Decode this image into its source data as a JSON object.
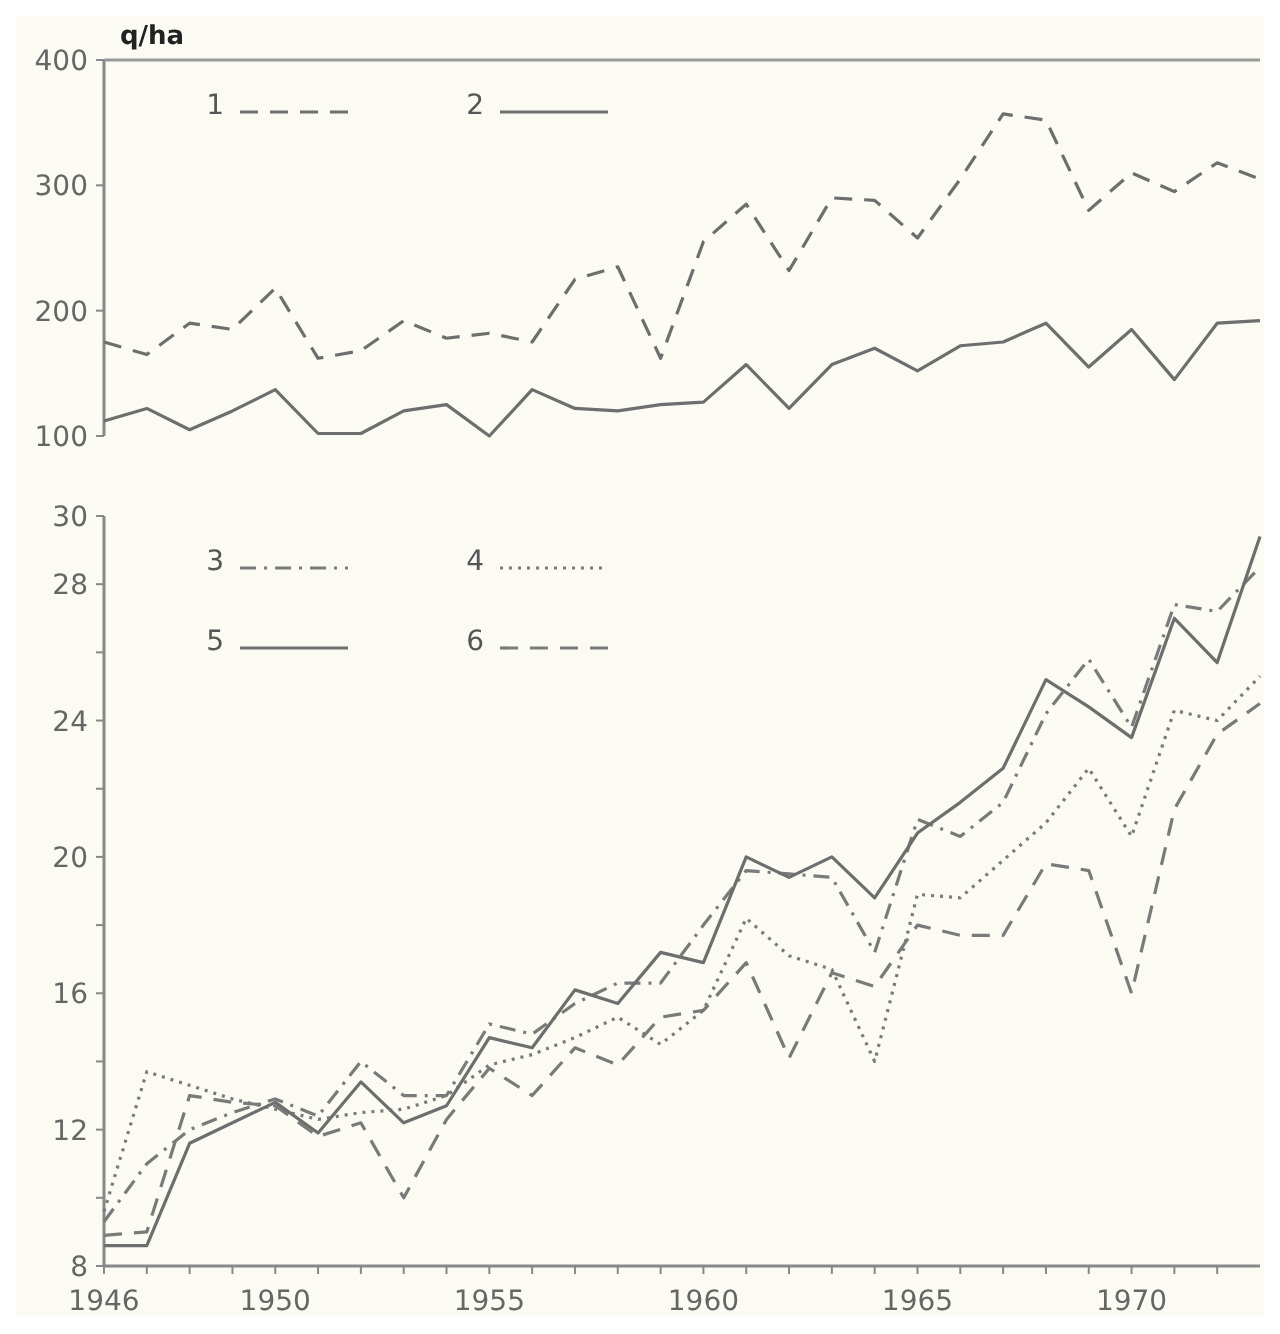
{
  "chart_data": [
    {
      "type": "line",
      "ylabel": "q/ha",
      "x": [
        1946,
        1947,
        1948,
        1949,
        1950,
        1951,
        1952,
        1953,
        1954,
        1955,
        1956,
        1957,
        1958,
        1959,
        1960,
        1961,
        1962,
        1963,
        1964,
        1965,
        1966,
        1967,
        1968,
        1969,
        1970,
        1971,
        1972,
        1973
      ],
      "xlim": [
        1946,
        1973
      ],
      "ylim": [
        100,
        400
      ],
      "yticks": [
        100,
        200,
        300,
        400
      ],
      "tick_labels": "y",
      "legend": "top left",
      "grid": false,
      "series": [
        {
          "name": "1",
          "color": "#6e6e6e",
          "line_style": "dashed",
          "values": [
            175,
            165,
            190,
            185,
            218,
            162,
            168,
            192,
            178,
            182,
            175,
            225,
            235,
            162,
            255,
            285,
            232,
            290,
            288,
            258,
            305,
            357,
            352,
            280,
            310,
            295,
            318,
            305
          ]
        },
        {
          "name": "2",
          "color": "#6e6e6e",
          "line_style": "solid",
          "values": [
            112,
            122,
            105,
            120,
            137,
            102,
            102,
            120,
            125,
            100,
            137,
            122,
            120,
            125,
            127,
            157,
            122,
            157,
            170,
            152,
            172,
            175,
            190,
            155,
            185,
            145,
            190,
            192
          ]
        }
      ]
    },
    {
      "type": "line",
      "x": [
        1946,
        1947,
        1948,
        1949,
        1950,
        1951,
        1952,
        1953,
        1954,
        1955,
        1956,
        1957,
        1958,
        1959,
        1960,
        1961,
        1962,
        1963,
        1964,
        1965,
        1966,
        1967,
        1968,
        1969,
        1970,
        1971,
        1972,
        1973
      ],
      "xlim": [
        1946,
        1973
      ],
      "ylim": [
        8,
        30
      ],
      "xticks": [
        1946,
        {
          "value": 1947,
          "label": null
        },
        {
          "value": 1948,
          "label": null
        },
        {
          "value": 1949,
          "label": null
        },
        1950,
        {
          "value": 1951,
          "label": null
        },
        {
          "value": 1952,
          "label": null
        },
        {
          "value": 1953,
          "label": null
        },
        {
          "value": 1954,
          "label": null
        },
        1955,
        {
          "value": 1956,
          "label": null
        },
        {
          "value": 1957,
          "label": null
        },
        {
          "value": 1958,
          "label": null
        },
        {
          "value": 1959,
          "label": null
        },
        1960,
        {
          "value": 1961,
          "label": null
        },
        {
          "value": 1962,
          "label": null
        },
        {
          "value": 1963,
          "label": null
        },
        {
          "value": 1964,
          "label": null
        },
        1965,
        {
          "value": 1966,
          "label": null
        },
        {
          "value": 1967,
          "label": null
        },
        {
          "value": 1968,
          "label": null
        },
        {
          "value": 1969,
          "label": null
        },
        1970,
        {
          "value": 1971,
          "label": null
        },
        {
          "value": 1972,
          "label": null
        }
      ],
      "yticks": [
        8,
        {
          "value": 10,
          "label": null
        },
        12,
        {
          "value": 14,
          "label": null
        },
        16,
        {
          "value": 18,
          "label": null
        },
        20,
        {
          "value": 22,
          "label": null
        },
        24,
        {
          "value": 26,
          "label": null
        },
        28,
        30
      ],
      "legend": "top left",
      "grid": false,
      "series": [
        {
          "name": "3",
          "color": "#7a7a7a",
          "line_style": "dashdot",
          "values": [
            9.3,
            11.0,
            12.0,
            12.5,
            12.9,
            12.4,
            14.0,
            13.0,
            13.0,
            15.1,
            14.8,
            15.7,
            16.3,
            16.3,
            18.0,
            19.6,
            19.5,
            19.4,
            17.2,
            21.1,
            20.6,
            21.6,
            24.2,
            25.8,
            23.8,
            27.4,
            27.2,
            28.5
          ]
        },
        {
          "name": "4",
          "color": "#7a7a7a",
          "line_style": "dotted",
          "values": [
            9.6,
            13.7,
            13.3,
            12.9,
            12.6,
            12.3,
            12.5,
            12.6,
            13.0,
            13.9,
            14.2,
            14.7,
            15.3,
            14.5,
            15.5,
            18.2,
            17.1,
            16.7,
            14.0,
            18.9,
            18.8,
            19.9,
            21.0,
            22.6,
            20.6,
            24.3,
            24.0,
            25.3
          ]
        },
        {
          "name": "5",
          "color": "#6e6e6e",
          "line_style": "solid",
          "values": [
            8.6,
            8.6,
            11.6,
            12.2,
            12.8,
            11.9,
            13.4,
            12.2,
            12.7,
            14.7,
            14.4,
            16.1,
            15.7,
            17.2,
            16.9,
            20.0,
            19.4,
            20.0,
            18.8,
            20.7,
            21.6,
            22.6,
            25.2,
            24.4,
            23.5,
            27.0,
            25.7,
            29.4
          ]
        },
        {
          "name": "6",
          "color": "#7a7a7a",
          "line_style": "dashed",
          "values": [
            8.9,
            9.0,
            13.0,
            12.8,
            12.7,
            11.8,
            12.2,
            10.0,
            12.3,
            13.8,
            13.0,
            14.4,
            13.9,
            15.3,
            15.5,
            16.9,
            14.1,
            16.6,
            16.2,
            18.0,
            17.7,
            17.7,
            19.8,
            19.6,
            16.0,
            21.4,
            23.6,
            24.5
          ]
        }
      ]
    }
  ]
}
